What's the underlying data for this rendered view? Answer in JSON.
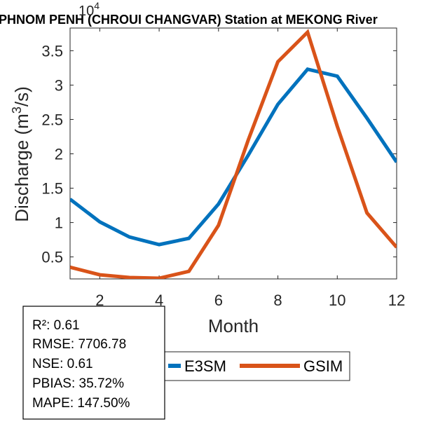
{
  "chart_data": {
    "type": "line",
    "title": "PHNOM PENH (CHROUI CHANGVAR)  Station at  MEKONG  River",
    "xlabel": "Month",
    "ylabel_base": "Discharge (m",
    "ylabel_sup": "3",
    "ylabel_tail": "/s)",
    "y_exponent_label": "10",
    "y_exponent_power": "4",
    "y_scale": 10000,
    "xlim": [
      1,
      12
    ],
    "ylim": [
      0.18,
      3.83
    ],
    "x_ticks": [
      2,
      4,
      6,
      8,
      10,
      12
    ],
    "x_tick_labels": [
      "2",
      "4",
      "6",
      "8",
      "10",
      "12"
    ],
    "y_ticks": [
      0.5,
      1,
      1.5,
      2,
      2.5,
      3,
      3.5
    ],
    "y_tick_labels": [
      "0.5",
      "1",
      "1.5",
      "2",
      "2.5",
      "3",
      "3.5"
    ],
    "x": [
      1,
      2,
      3,
      4,
      5,
      6,
      7,
      8,
      9,
      10,
      11,
      12
    ],
    "series": [
      {
        "name": "E3SM",
        "color": "#0072BD",
        "values": [
          1.34,
          1.01,
          0.79,
          0.68,
          0.77,
          1.27,
          1.98,
          2.72,
          3.23,
          3.13,
          2.52,
          1.88
        ]
      },
      {
        "name": "GSIM",
        "color": "#D95319",
        "values": [
          0.35,
          0.24,
          0.2,
          0.19,
          0.29,
          0.96,
          2.2,
          3.34,
          3.77,
          2.4,
          1.14,
          0.64
        ]
      }
    ],
    "legend": [
      "E3SM",
      "GSIM"
    ],
    "legend_position": "bottom-right outside",
    "stats": [
      {
        "label": "R²",
        "value": "0.61"
      },
      {
        "label": "RMSE",
        "value": "7706.78"
      },
      {
        "label": "NSE",
        "value": "0.61"
      },
      {
        "label": "PBIAS",
        "value": "35.72%"
      },
      {
        "label": "MAPE",
        "value": "147.50%"
      }
    ]
  }
}
